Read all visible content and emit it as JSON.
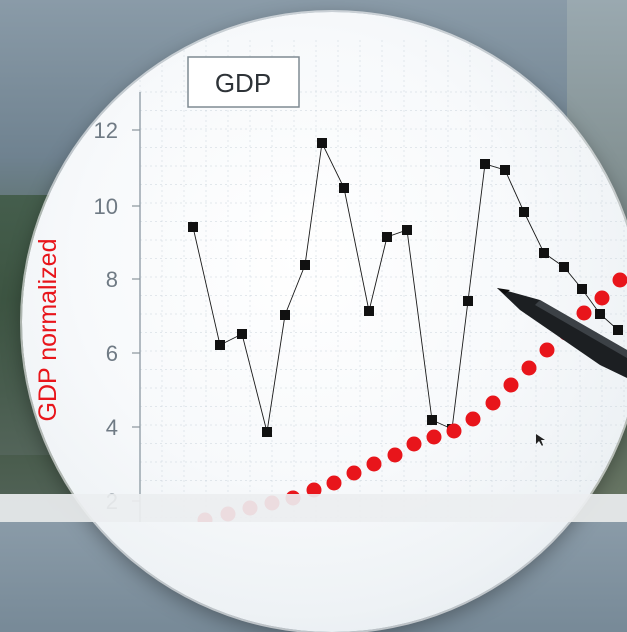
{
  "photo": {
    "legend_label": "GDP",
    "y_axis_label": "GDP normalized",
    "y_ticks": [
      "12",
      "10",
      "8",
      "6",
      "4",
      "2"
    ],
    "colors": {
      "lens": "#f6f8fa",
      "black_series": "#111111",
      "red_series": "#e8151b",
      "grid": "#c9d3dc",
      "ylabel": "#e8151b"
    },
    "elements": [
      "pen-pointer",
      "mouse-cursor"
    ]
  }
}
